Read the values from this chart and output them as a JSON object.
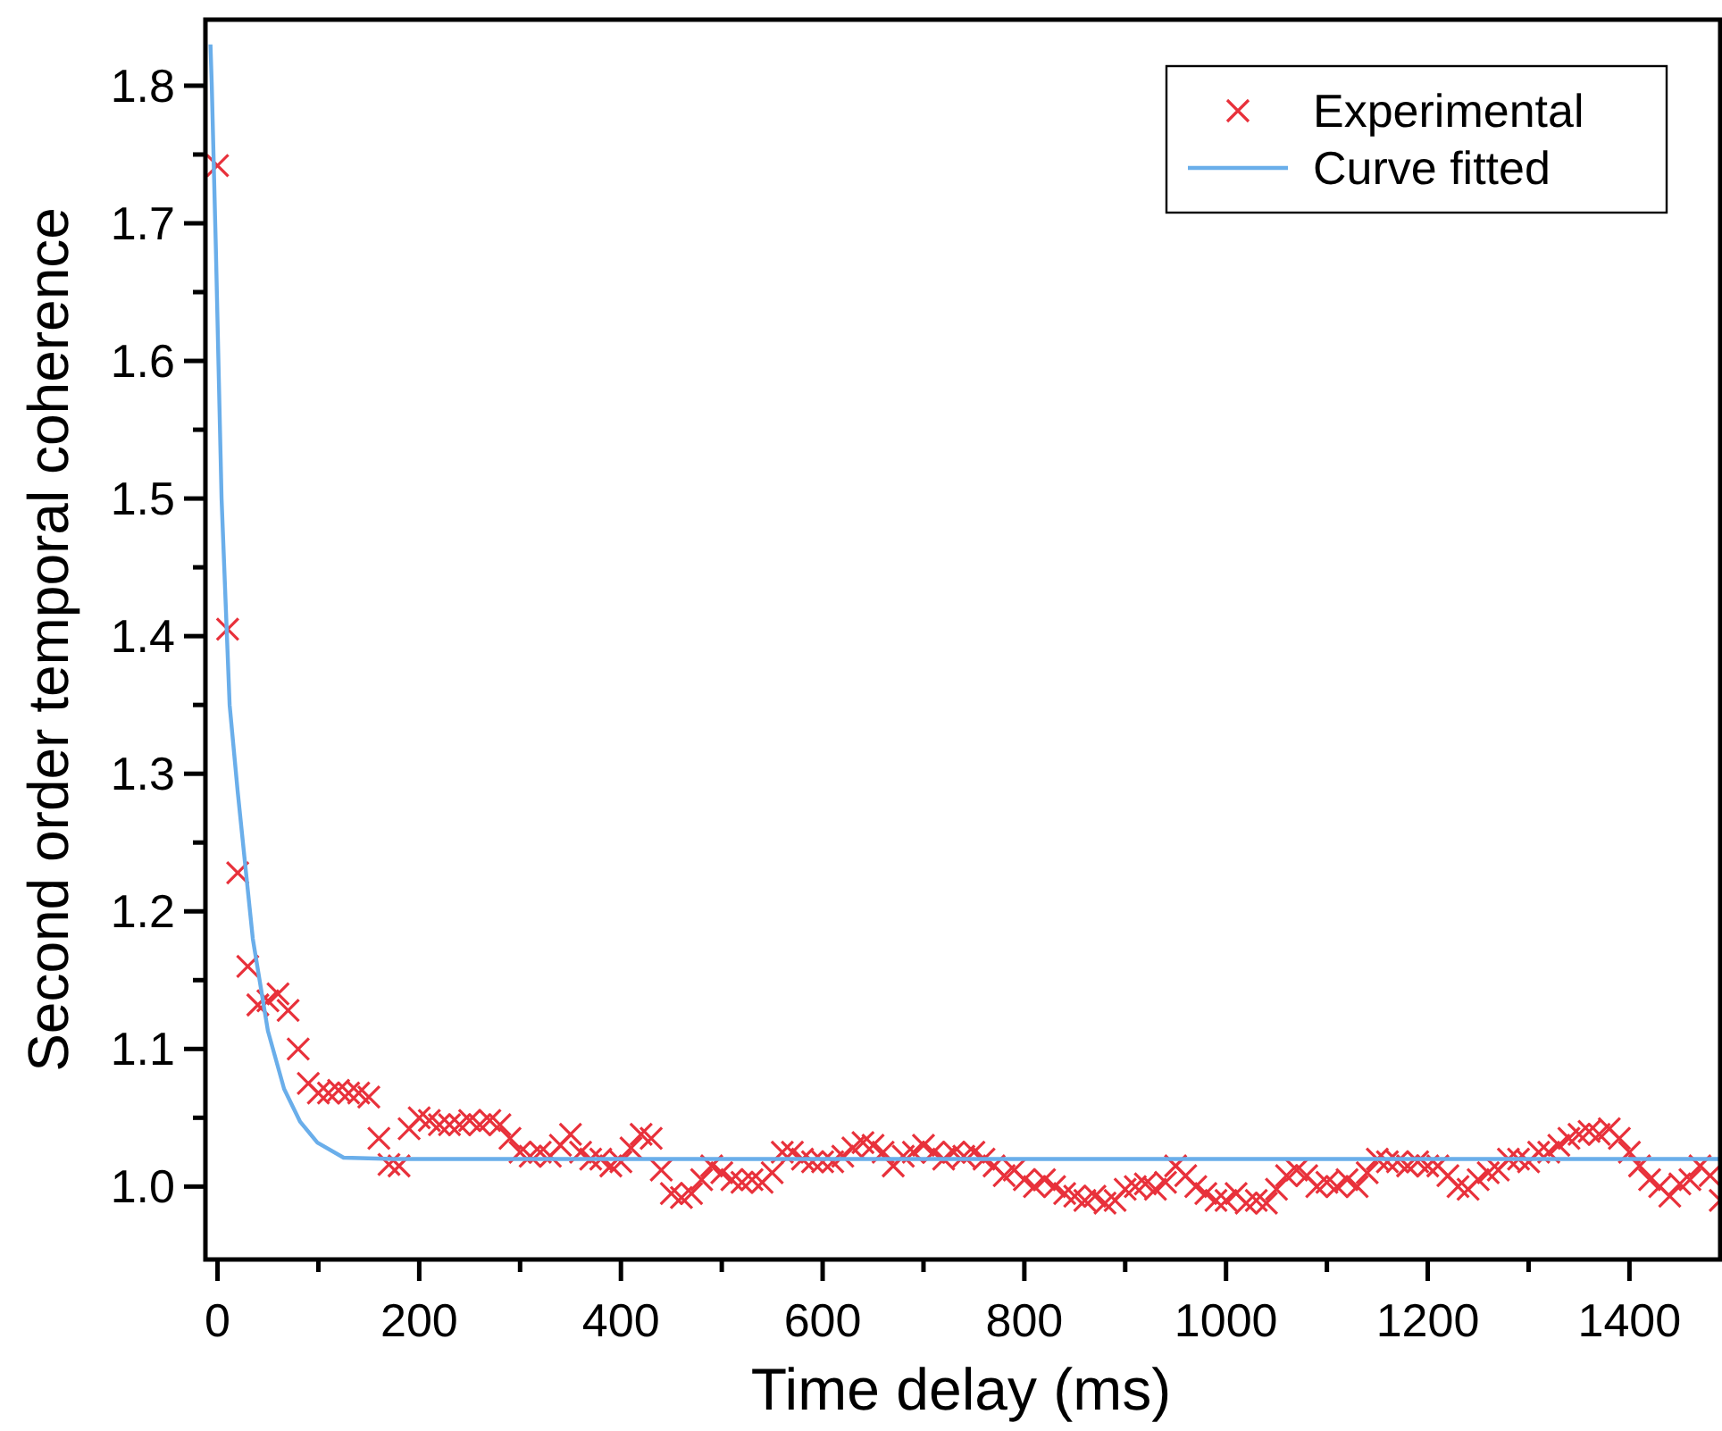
{
  "chart_data": {
    "type": "scatter",
    "xlabel": "Time delay (ms)",
    "ylabel": "Second order temporal coherence",
    "xlim": [
      -12,
      1490
    ],
    "ylim": [
      0.947,
      1.848
    ],
    "xticks": [
      0,
      {
        "value": 100,
        "label": null
      },
      200,
      {
        "value": 300,
        "label": null
      },
      400,
      {
        "value": 500,
        "label": null
      },
      600,
      {
        "value": 700,
        "label": null
      },
      800,
      {
        "value": 900,
        "label": null
      },
      1000,
      {
        "value": 1100,
        "label": null
      },
      1200,
      {
        "value": 1300,
        "label": null
      },
      1400
    ],
    "yticks": [
      {
        "value": 1,
        "label": "1.0"
      },
      {
        "value": 1.05,
        "label": null
      },
      {
        "value": 1.1,
        "label": "1.1"
      },
      {
        "value": 1.15,
        "label": null
      },
      {
        "value": 1.2,
        "label": "1.2"
      },
      {
        "value": 1.25,
        "label": null
      },
      {
        "value": 1.3,
        "label": "1.3"
      },
      {
        "value": 1.35,
        "label": null
      },
      {
        "value": 1.4,
        "label": "1.4"
      },
      {
        "value": 1.45,
        "label": null
      },
      {
        "value": 1.5,
        "label": "1.5"
      },
      {
        "value": 1.55,
        "label": null
      },
      {
        "value": 1.6,
        "label": "1.6"
      },
      {
        "value": 1.65,
        "label": null
      },
      {
        "value": 1.7,
        "label": "1.7"
      },
      {
        "value": 1.75,
        "label": null
      },
      {
        "value": 1.8,
        "label": "1.8"
      }
    ],
    "legend": "top right",
    "grid": false,
    "series": [
      {
        "name": "Experimental",
        "marker": "cross",
        "color": "#e8313b",
        "x": [
          0,
          10,
          20,
          30,
          40,
          50,
          60,
          70,
          80,
          90,
          100,
          110,
          120,
          130,
          140,
          150,
          160,
          170,
          180,
          190,
          200,
          210,
          220,
          230,
          240,
          250,
          260,
          270,
          280,
          290,
          300,
          310,
          320,
          330,
          340,
          350,
          360,
          370,
          380,
          390,
          400,
          410,
          420,
          430,
          440,
          450,
          460,
          470,
          480,
          490,
          500,
          510,
          520,
          530,
          540,
          550,
          560,
          570,
          580,
          590,
          600,
          610,
          620,
          630,
          640,
          650,
          660,
          670,
          680,
          690,
          700,
          710,
          720,
          730,
          740,
          750,
          760,
          770,
          780,
          790,
          800,
          810,
          820,
          830,
          840,
          850,
          860,
          870,
          880,
          890,
          900,
          910,
          920,
          930,
          940,
          950,
          960,
          970,
          980,
          990,
          1000,
          1010,
          1020,
          1030,
          1040,
          1050,
          1060,
          1070,
          1080,
          1090,
          1100,
          1110,
          1120,
          1130,
          1140,
          1150,
          1160,
          1170,
          1180,
          1190,
          1200,
          1210,
          1220,
          1230,
          1240,
          1250,
          1260,
          1270,
          1280,
          1290,
          1300,
          1310,
          1320,
          1330,
          1340,
          1350,
          1360,
          1370,
          1380,
          1390,
          1400,
          1410,
          1420,
          1430,
          1440,
          1450,
          1460,
          1470,
          1480,
          1490
        ],
        "values": [
          1.742,
          1.405,
          1.228,
          1.16,
          1.132,
          1.135,
          1.14,
          1.128,
          1.1,
          1.075,
          1.068,
          1.068,
          1.07,
          1.068,
          1.068,
          1.065,
          1.035,
          1.016,
          1.015,
          1.042,
          1.05,
          1.048,
          1.045,
          1.045,
          1.045,
          1.048,
          1.045,
          1.048,
          1.045,
          1.035,
          1.025,
          1.022,
          1.025,
          1.022,
          1.03,
          1.038,
          1.025,
          1.02,
          1.02,
          1.015,
          1.018,
          1.028,
          1.038,
          1.035,
          1.012,
          0.995,
          0.992,
          0.995,
          1.005,
          1.015,
          1.01,
          1.005,
          1.003,
          1.005,
          1.003,
          1.01,
          1.025,
          1.025,
          1.02,
          1.018,
          1.018,
          1.018,
          1.022,
          1.028,
          1.032,
          1.03,
          1.025,
          1.015,
          1.022,
          1.025,
          1.03,
          1.025,
          1.02,
          1.025,
          1.022,
          1.025,
          1.02,
          1.015,
          1.008,
          1.012,
          1.005,
          1.0,
          1.005,
          1.0,
          0.995,
          0.993,
          0.99,
          0.993,
          0.988,
          0.99,
          0.998,
          1.0,
          1.002,
          0.998,
          1.003,
          1.015,
          1.008,
          1.0,
          0.995,
          0.99,
          0.99,
          0.995,
          0.988,
          0.99,
          0.988,
          0.998,
          1.008,
          1.012,
          1.008,
          1.0,
          1.003,
          1.0,
          1.005,
          1.0,
          1.01,
          1.02,
          1.018,
          1.018,
          1.015,
          1.018,
          1.015,
          1.015,
          1.008,
          1.0,
          0.998,
          1.005,
          1.01,
          1.012,
          1.02,
          1.02,
          1.018,
          1.025,
          1.025,
          1.03,
          1.035,
          1.038,
          1.04,
          1.038,
          1.042,
          1.035,
          1.025,
          1.015,
          1.005,
          1.0,
          0.993,
          1.002,
          1.005,
          1.015,
          1.008,
          0.99
        ]
      },
      {
        "name": "Curve fitted",
        "type": "line",
        "line_style": "solid",
        "color": "#6aaeea",
        "x": [
          -7,
          -5.7,
          -1.6,
          4,
          12,
          20,
          35,
          50,
          66,
          82,
          99,
          125,
          174,
          300,
          600,
          900,
          1200,
          1490
        ],
        "values": [
          1.83,
          1.8,
          1.68,
          1.5,
          1.35,
          1.287,
          1.18,
          1.113,
          1.071,
          1.047,
          1.032,
          1.021,
          1.02,
          1.02,
          1.02,
          1.02,
          1.02,
          1.02
        ]
      }
    ]
  }
}
